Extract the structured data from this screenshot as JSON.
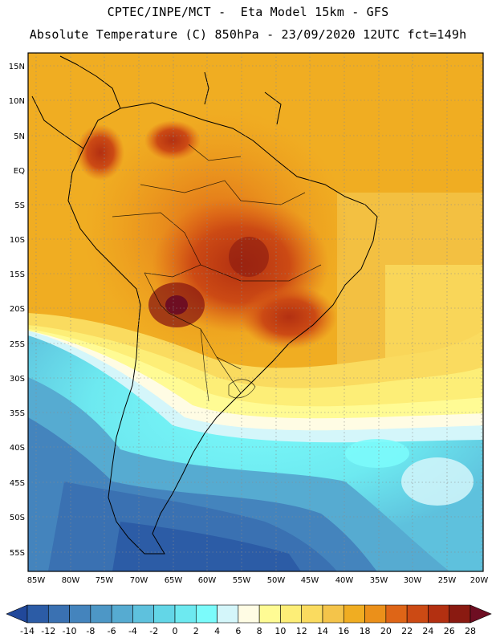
{
  "header": {
    "line1": "CPTEC/INPE/MCT -  Eta Model 15km - GFS",
    "line2": "Absolute Temperature (C) 850hPa - 23/09/2020 12UTC fct=149h"
  },
  "map": {
    "lat_labels": [
      "15N",
      "10N",
      "5N",
      "EQ",
      "5S",
      "10S",
      "15S",
      "20S",
      "25S",
      "30S",
      "35S",
      "40S",
      "45S",
      "50S",
      "55S"
    ],
    "lon_labels": [
      "85W",
      "80W",
      "75W",
      "70W",
      "65W",
      "60W",
      "55W",
      "50W",
      "45W",
      "40W",
      "35W",
      "30W",
      "25W",
      "20W"
    ]
  },
  "colorbar": {
    "labels": [
      "-14",
      "-12",
      "-10",
      "-8",
      "-6",
      "-4",
      "-2",
      "0",
      "2",
      "4",
      "6",
      "8",
      "10",
      "12",
      "14",
      "16",
      "18",
      "20",
      "22",
      "24",
      "26",
      "28"
    ],
    "colors": [
      "#21489a",
      "#2c5ca6",
      "#3a71b2",
      "#4484bd",
      "#4d97c6",
      "#56abd1",
      "#5ec1dd",
      "#63d6e7",
      "#6de9f0",
      "#7bfbfb",
      "#d4f6fa",
      "#fffce4",
      "#fffb94",
      "#fdee77",
      "#fadb5f",
      "#f4c44a",
      "#f0ad22",
      "#eb901a",
      "#de6517",
      "#cc4a14",
      "#b33011",
      "#8a1a11",
      "#6e0e22"
    ]
  }
}
